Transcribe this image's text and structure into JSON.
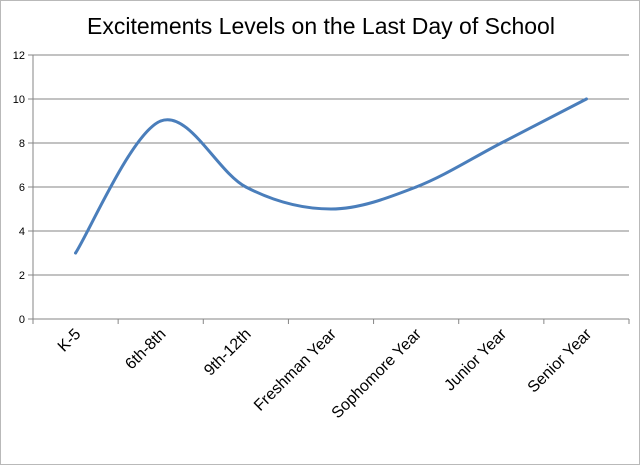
{
  "chart_data": {
    "type": "line",
    "title": "Excitements Levels on the Last Day of School",
    "categories": [
      "K-5",
      "6th-8th",
      "9th-12th",
      "Freshman Year",
      "Sophomore Year",
      "Junior Year",
      "Senior Year"
    ],
    "series": [
      {
        "values": [
          3,
          9,
          6,
          5,
          6,
          8,
          10
        ]
      }
    ],
    "ylim": [
      0,
      12
    ],
    "yticks": [
      0,
      2,
      4,
      6,
      8,
      10,
      12
    ],
    "xlabel": "",
    "ylabel": "",
    "grid": true,
    "smooth": true,
    "colors": {
      "line": "#4a7ebb",
      "grid": "#868686",
      "axis": "#868686"
    }
  }
}
